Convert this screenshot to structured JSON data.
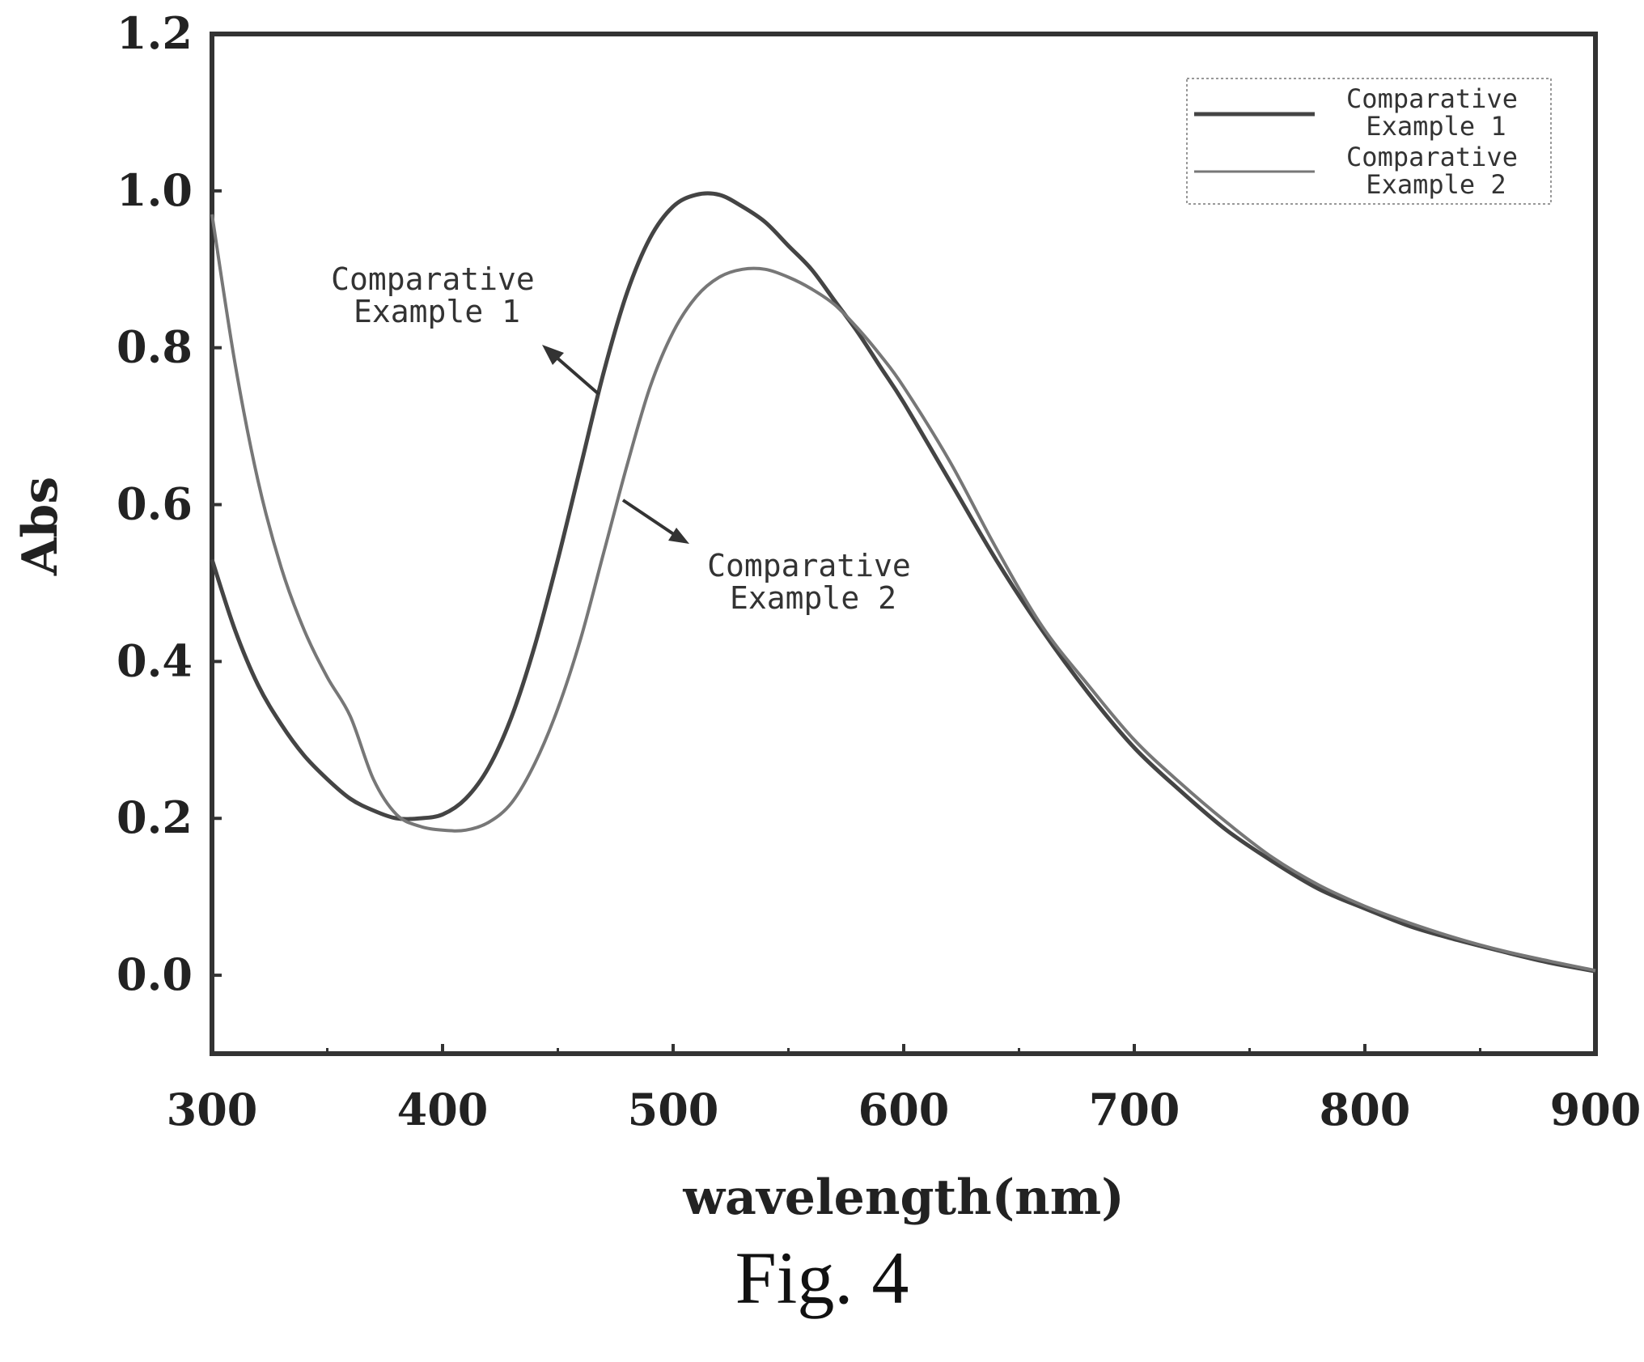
{
  "chart_data": {
    "type": "line",
    "xlabel": "wavelength(nm)",
    "ylabel": "Abs",
    "xlim": [
      300,
      900
    ],
    "ylim": [
      -0.1,
      1.2
    ],
    "x_ticks": [
      300,
      400,
      500,
      600,
      700,
      800,
      900
    ],
    "y_ticks": [
      0.0,
      0.2,
      0.4,
      0.6,
      0.8,
      1.0,
      1.2
    ],
    "grid": false,
    "legend_position": "top-right",
    "legend": [
      {
        "line1": "Comparative",
        "line2": "Example 1"
      },
      {
        "line1": "Comparative",
        "line2": "Example 2"
      }
    ],
    "annotations": [
      {
        "line1": "Comparative",
        "line2": "Example 1"
      },
      {
        "line1": "Comparative",
        "line2": "Example 2"
      }
    ],
    "series": [
      {
        "name": "Comparative Example 1",
        "x": [
          300,
          310,
          320,
          330,
          340,
          350,
          360,
          370,
          380,
          390,
          400,
          410,
          420,
          430,
          440,
          450,
          460,
          470,
          480,
          490,
          500,
          510,
          520,
          530,
          540,
          550,
          560,
          570,
          580,
          590,
          600,
          620,
          640,
          660,
          680,
          700,
          720,
          740,
          760,
          780,
          800,
          820,
          840,
          860,
          880,
          900
        ],
        "y": [
          0.53,
          0.44,
          0.37,
          0.32,
          0.28,
          0.25,
          0.225,
          0.21,
          0.2,
          0.2,
          0.205,
          0.225,
          0.265,
          0.33,
          0.42,
          0.53,
          0.65,
          0.77,
          0.87,
          0.94,
          0.98,
          0.995,
          0.995,
          0.98,
          0.96,
          0.93,
          0.9,
          0.86,
          0.82,
          0.775,
          0.73,
          0.63,
          0.53,
          0.44,
          0.36,
          0.29,
          0.235,
          0.185,
          0.145,
          0.11,
          0.085,
          0.062,
          0.045,
          0.03,
          0.016,
          0.005
        ]
      },
      {
        "name": "Comparative Example 2",
        "x": [
          300,
          310,
          320,
          330,
          340,
          350,
          360,
          370,
          380,
          390,
          400,
          410,
          420,
          430,
          440,
          450,
          460,
          470,
          480,
          490,
          500,
          510,
          520,
          530,
          540,
          550,
          560,
          570,
          580,
          590,
          600,
          620,
          640,
          660,
          680,
          700,
          720,
          740,
          760,
          780,
          800,
          820,
          840,
          860,
          880,
          900
        ],
        "y": [
          0.97,
          0.78,
          0.63,
          0.52,
          0.44,
          0.38,
          0.33,
          0.25,
          0.205,
          0.19,
          0.185,
          0.185,
          0.195,
          0.22,
          0.27,
          0.34,
          0.43,
          0.54,
          0.65,
          0.75,
          0.82,
          0.865,
          0.89,
          0.9,
          0.9,
          0.89,
          0.875,
          0.855,
          0.825,
          0.79,
          0.75,
          0.655,
          0.545,
          0.445,
          0.37,
          0.3,
          0.245,
          0.195,
          0.15,
          0.115,
          0.088,
          0.066,
          0.047,
          0.031,
          0.018,
          0.006
        ]
      }
    ]
  },
  "caption": "Fig. 4"
}
